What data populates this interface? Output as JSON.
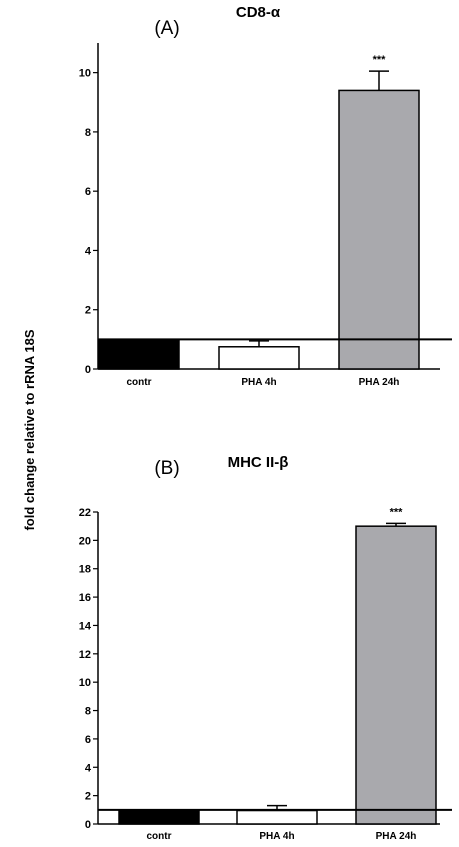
{
  "shared_ylabel": "fold change relative to rRNA 18S",
  "chart_data": [
    {
      "type": "bar",
      "panel_label": "(A)",
      "title": "CD8-α",
      "categories": [
        "contr",
        "PHA 4h",
        "PHA 24h"
      ],
      "values": [
        1.0,
        0.75,
        9.4
      ],
      "error": [
        0.0,
        0.2,
        0.65
      ],
      "significance": [
        "",
        "",
        "***"
      ],
      "bar_colors": [
        "#000000",
        "#ffffff",
        "#a9a9ad"
      ],
      "ylim": [
        0,
        11
      ],
      "yticks": [
        0,
        2,
        4,
        6,
        8,
        10
      ],
      "reference_line": 1,
      "xlabel": "",
      "ylabel": ""
    },
    {
      "type": "bar",
      "panel_label": "(B)",
      "title": "MHC II-β",
      "categories": [
        "contr",
        "PHA 4h",
        "PHA 24h"
      ],
      "values": [
        1.0,
        0.95,
        21.0
      ],
      "error": [
        0.0,
        0.35,
        0.2
      ],
      "significance": [
        "",
        "",
        "***"
      ],
      "bar_colors": [
        "#000000",
        "#ffffff",
        "#a9a9ad"
      ],
      "ylim": [
        0,
        22
      ],
      "yticks": [
        0,
        2,
        4,
        6,
        8,
        10,
        12,
        14,
        16,
        18,
        20,
        22
      ],
      "reference_line": 1,
      "xlabel": "",
      "ylabel": ""
    }
  ]
}
